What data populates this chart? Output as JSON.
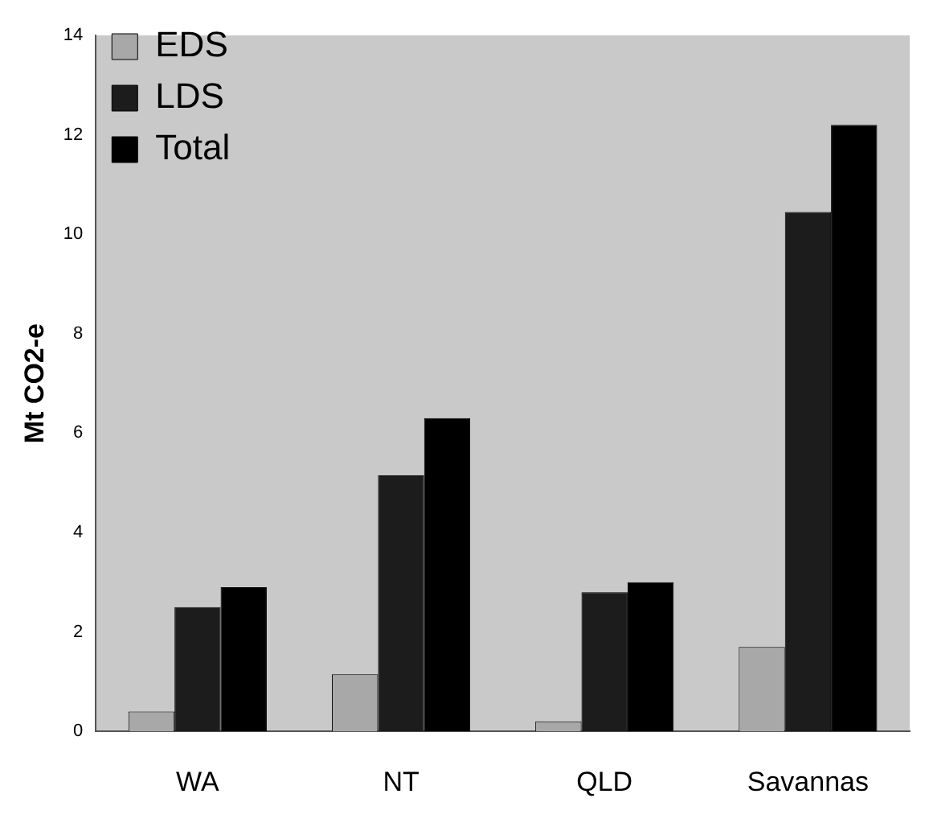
{
  "chart_data": {
    "type": "bar",
    "ylabel": "Mt CO2-e",
    "categories": [
      "WA",
      "NT",
      "QLD",
      "Savannas"
    ],
    "series": [
      {
        "name": "EDS",
        "color": "#a8a8a8",
        "values": [
          0.4,
          1.15,
          0.2,
          1.7
        ]
      },
      {
        "name": "LDS",
        "color": "#1c1c1c",
        "values": [
          2.5,
          5.15,
          2.8,
          10.45
        ]
      },
      {
        "name": "Total",
        "color": "#000000",
        "values": [
          2.9,
          6.3,
          3.0,
          12.2
        ]
      }
    ],
    "ylim": [
      0,
      14
    ],
    "yticks": [
      0,
      2,
      4,
      6,
      8,
      10,
      12,
      14
    ],
    "grid": false,
    "legend": "top left"
  }
}
